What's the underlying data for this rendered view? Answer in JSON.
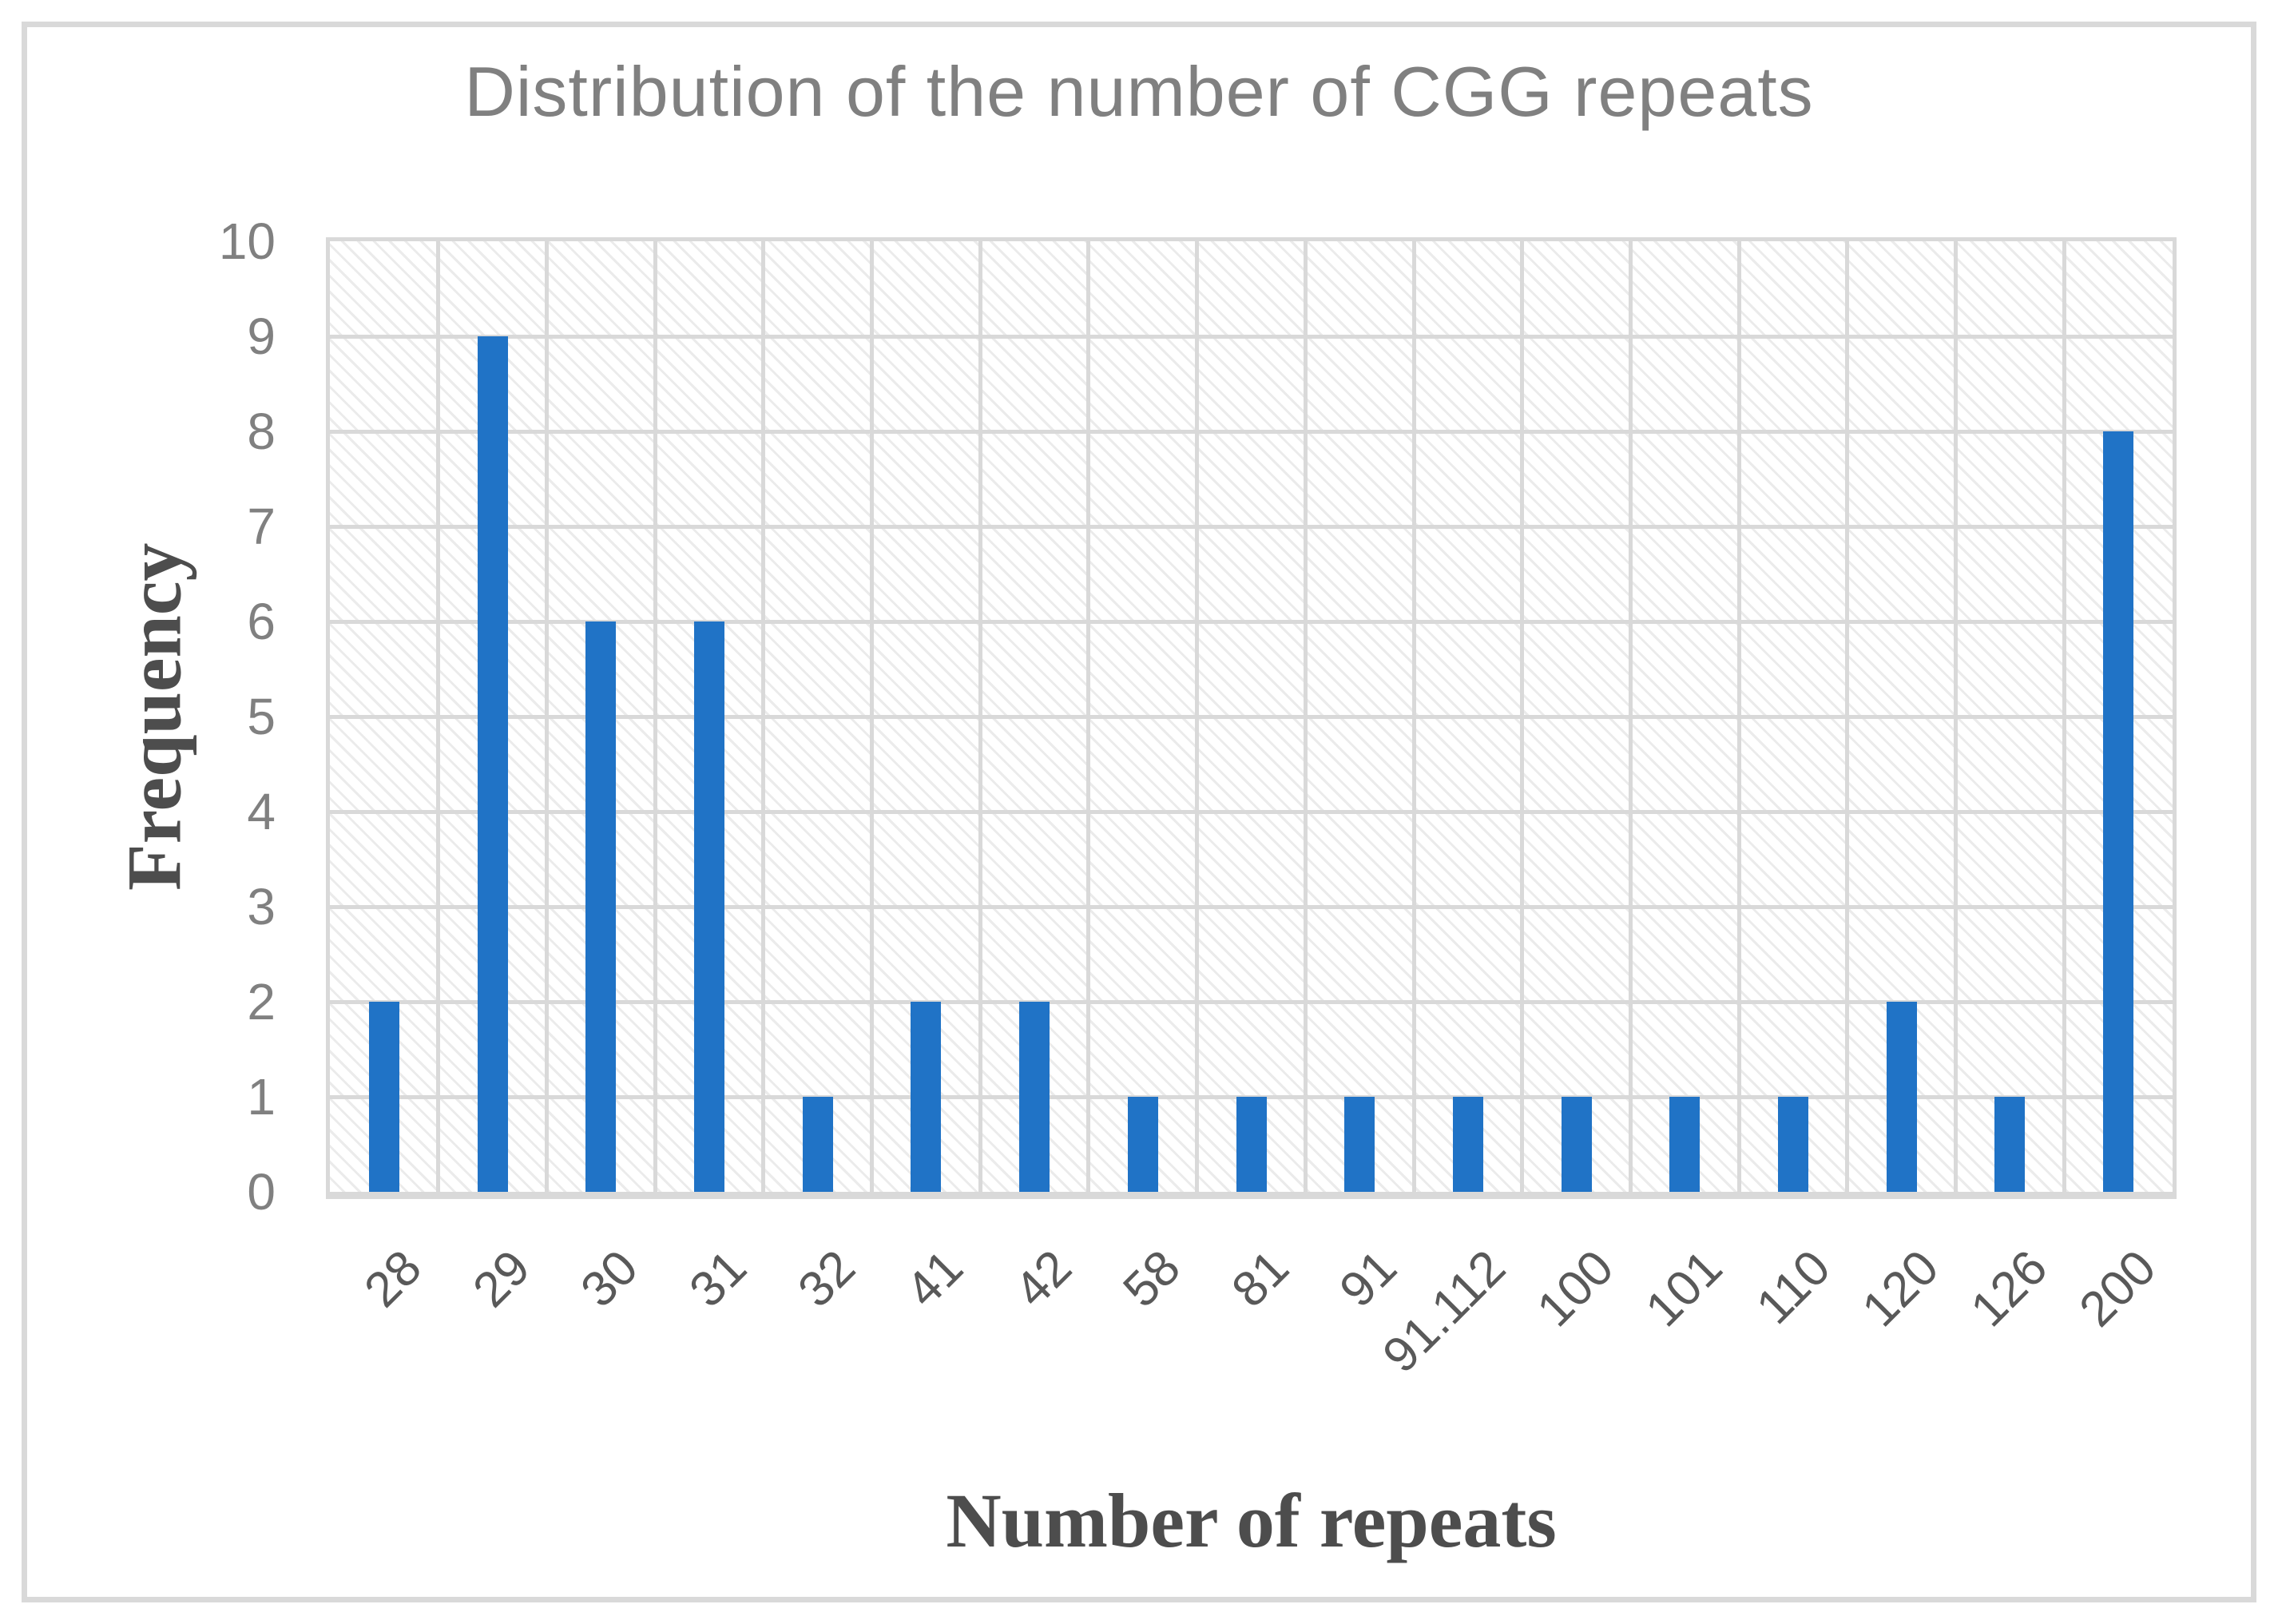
{
  "chart_data": {
    "type": "bar",
    "title": "Distribution of the number of CGG repeats",
    "xlabel": "Number of repeats",
    "ylabel": "Frequency",
    "categories": [
      "28",
      "29",
      "30",
      "31",
      "32",
      "41",
      "42",
      "58",
      "81",
      "91",
      "91.112",
      "100",
      "101",
      "110",
      "120",
      "126",
      "200"
    ],
    "values": [
      2,
      9,
      6,
      6,
      1,
      2,
      2,
      1,
      1,
      1,
      1,
      1,
      1,
      1,
      2,
      1,
      8
    ],
    "ylim": [
      0,
      10
    ],
    "yticks": [
      0,
      1,
      2,
      3,
      4,
      5,
      6,
      7,
      8,
      9,
      10
    ],
    "grid": true,
    "legend": "none",
    "plot_background": "diagonal-hatch",
    "colors": {
      "bar": "#2073C6",
      "grid": "#D9D9D9",
      "frame": "#D9D9D9",
      "hatch": "#EBEBEB",
      "title": "#808080",
      "y_tick_labels": "#808080",
      "x_tick_labels": "#595959",
      "axis_titles": "#4D4D4D"
    }
  }
}
